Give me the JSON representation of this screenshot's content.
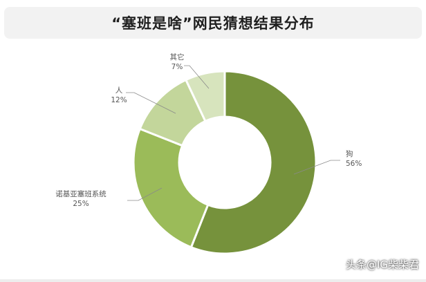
{
  "header": {
    "title": "“塞班是啥”网民猜想结果分布"
  },
  "chart_data": {
    "type": "pie",
    "style": "donut",
    "title": "“塞班是啥”网民猜想结果分布",
    "slices": [
      {
        "label": "狗",
        "value": 56,
        "value_text": "56%",
        "color": "#76923c"
      },
      {
        "label": "诺基亚塞班系统",
        "value": 25,
        "value_text": "25%",
        "color": "#9bbb59"
      },
      {
        "label": "人",
        "value": 12,
        "value_text": "12%",
        "color": "#c3d69b"
      },
      {
        "label": "其它",
        "value": 7,
        "value_text": "7%",
        "color": "#d7e4bd"
      }
    ]
  },
  "watermark": "头条@IG柴柴君"
}
